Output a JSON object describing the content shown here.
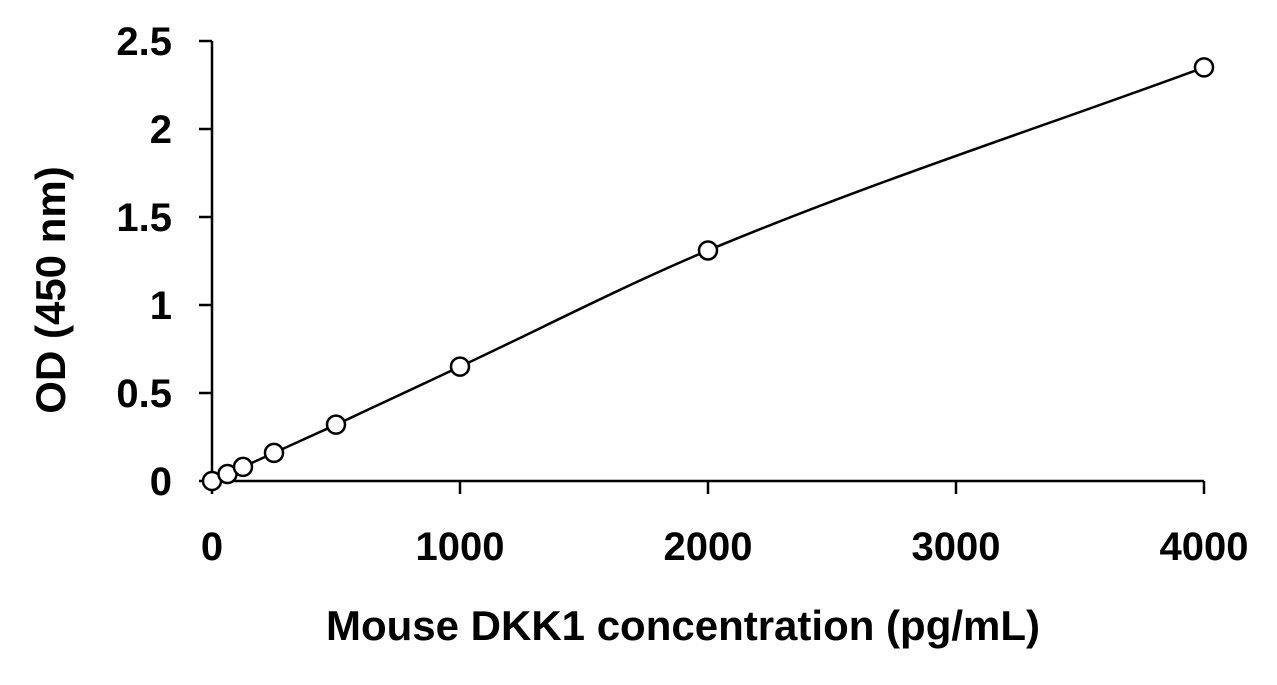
{
  "chart_data": {
    "type": "scatter",
    "title": "",
    "xlabel": "Mouse DKK1 concentration (pg/mL)",
    "ylabel": "OD (450 nm)",
    "xlim": [
      0,
      4000
    ],
    "ylim": [
      0,
      2.5
    ],
    "x_ticks": [
      0,
      1000,
      2000,
      3000,
      4000
    ],
    "y_ticks": [
      0,
      0.5,
      1,
      1.5,
      2,
      2.5
    ],
    "x_tick_labels": [
      "0",
      "1000",
      "2000",
      "3000",
      "4000"
    ],
    "y_tick_labels": [
      "0",
      "0.5",
      "1",
      "1.5",
      "2",
      "2.5"
    ],
    "grid": false,
    "legend": "none",
    "series": [
      {
        "x": [
          0,
          62.5,
          125,
          250,
          500,
          1000,
          2000,
          4000
        ],
        "y": [
          0.0,
          0.04,
          0.08,
          0.16,
          0.32,
          0.65,
          1.31,
          2.35
        ],
        "marker": "open-circle",
        "trendline": "smooth-curve",
        "color": "#000000"
      }
    ]
  }
}
